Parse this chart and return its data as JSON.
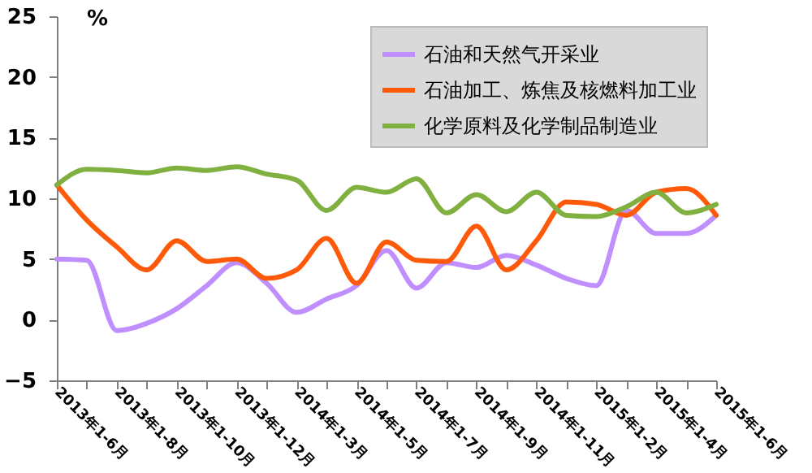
{
  "chart_data": {
    "type": "line",
    "ylabel": "%",
    "categories": [
      "2013年1-6月",
      null,
      "2013年1-8月",
      null,
      "2013年1-10月",
      null,
      "2013年1-12月",
      null,
      "2014年1-3月",
      null,
      "2014年1-5月",
      null,
      "2014年1-7月",
      null,
      "2014年1-9月",
      null,
      "2014年1-11月",
      null,
      "2015年1-2月",
      null,
      "2015年1-4月",
      null,
      "2015年1-6月"
    ],
    "series": [
      {
        "name": "石油和天然气开采业",
        "color": "#bf8fff",
        "values": [
          5.0,
          4.9,
          -0.9,
          -0.3,
          0.9,
          2.8,
          4.7,
          3.0,
          0.6,
          1.7,
          2.8,
          5.7,
          2.6,
          4.7,
          4.3,
          5.3,
          4.5,
          3.4,
          2.8,
          9.0,
          7.1,
          7.1,
          8.6
        ]
      },
      {
        "name": "石油加工、炼焦及核燃料加工业",
        "color": "#ff5a0a",
        "values": [
          11.1,
          8.2,
          6.0,
          4.1,
          6.5,
          4.8,
          5.0,
          3.4,
          4.1,
          6.7,
          3.0,
          6.4,
          4.9,
          4.8,
          7.7,
          4.1,
          6.5,
          9.7,
          9.5,
          8.6,
          10.5,
          10.8,
          8.6
        ]
      },
      {
        "name": "化学原料及化学制品制造业",
        "color": "#80b040",
        "values": [
          11.1,
          12.4,
          12.3,
          12.1,
          12.5,
          12.3,
          12.6,
          12.0,
          11.5,
          9.0,
          10.9,
          10.5,
          11.6,
          8.8,
          10.3,
          8.9,
          10.5,
          8.6,
          8.5,
          9.3,
          10.5,
          8.8,
          9.5
        ]
      }
    ],
    "ylim": [
      -5,
      25
    ],
    "yticks": [
      -5,
      0,
      5,
      10,
      15,
      20,
      25
    ],
    "grid": false,
    "legend": "top right",
    "marker": "none",
    "line_style": "solid"
  }
}
